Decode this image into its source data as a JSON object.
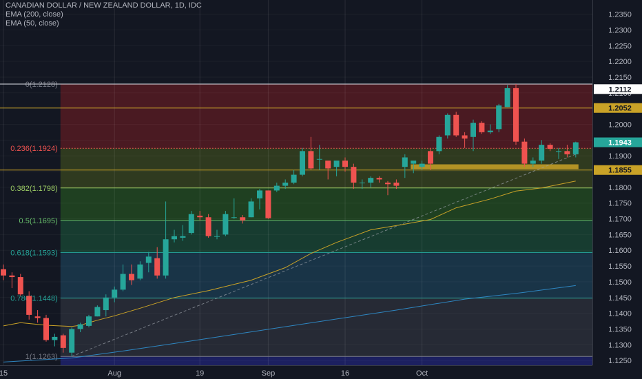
{
  "header": {
    "title": "CANADIAN DOLLAR / NEW ZEALAND DOLLAR, 1D, IDC",
    "indicators": [
      "EMA (200, close)",
      "EMA (50, close)"
    ]
  },
  "colors": {
    "background": "#131722",
    "up": "#26a69a",
    "down": "#ef5350",
    "ema50": "#c9a227",
    "ema200": "#2e86c1",
    "trendline": "#9aa0a8",
    "text": "#b2b5be"
  },
  "chart_data": {
    "type": "candlestick",
    "symbol": "CADNZD",
    "timeframe": "1D",
    "ylim": [
      1.1235,
      1.2395
    ],
    "x_tick_labels": [
      {
        "label": "15",
        "index": 0
      },
      {
        "label": "Aug",
        "index": 13
      },
      {
        "label": "19",
        "index": 23
      },
      {
        "label": "Sep",
        "index": 31
      },
      {
        "label": "16",
        "index": 40
      },
      {
        "label": "Oct",
        "index": 49
      }
    ],
    "y_ticks": [
      1.125,
      1.13,
      1.135,
      1.14,
      1.145,
      1.15,
      1.155,
      1.16,
      1.165,
      1.17,
      1.175,
      1.18,
      1.185,
      1.19,
      1.195,
      1.2,
      1.205,
      1.21,
      1.215,
      1.22,
      1.225,
      1.23,
      1.235
    ],
    "y_tick_labels": [
      "1.1250",
      "1.1300",
      "1.1350",
      "1.1400",
      "1.1450",
      "1.1500",
      "1.1550",
      "1.1600",
      "1.1650",
      "1.1700",
      "1.1750",
      "1.1800",
      "1.1850",
      "1.1900",
      "1.1950",
      "1.2000",
      "1.2050",
      "1.2100",
      "1.2150",
      "1.2200",
      "1.2250",
      "1.2300",
      "1.2350"
    ],
    "price_badges": [
      {
        "label": "1.2112",
        "value": 1.2112,
        "bg": "#ffffff",
        "fg": "#131722"
      },
      {
        "label": "1.2052",
        "value": 1.2052,
        "bg": "#c9a227",
        "fg": "#131722"
      },
      {
        "label": "1.1943",
        "value": 1.1943,
        "bg": "#26a69a",
        "fg": "#ffffff"
      },
      {
        "label": "1.1855",
        "value": 1.1855,
        "bg": "#c9a227",
        "fg": "#131722"
      }
    ],
    "horizontal_lines": [
      {
        "value": 1.2128,
        "color": "#e0e3eb"
      },
      {
        "value": 1.2052,
        "color": "#c9a227"
      },
      {
        "value": 1.1855,
        "color": "#c9a227"
      }
    ],
    "fibonacci": {
      "start_index": 7,
      "levels": [
        {
          "label": "0(1.2128)",
          "value": 1.2128,
          "color": "#787b86",
          "fill": "#4a1a22"
        },
        {
          "label": "0.236(1.1924)",
          "value": 1.1924,
          "color": "#ef5350",
          "fill": "#2f3a1f"
        },
        {
          "label": "0.382(1.1798)",
          "value": 1.1798,
          "color": "#9ccc65",
          "fill": "#1f4021"
        },
        {
          "label": "0.5(1.1695)",
          "value": 1.1695,
          "color": "#66bb6a",
          "fill": "#173c30"
        },
        {
          "label": "0.618(1.1593)",
          "value": 1.1593,
          "color": "#26a69a",
          "fill": "#193447"
        },
        {
          "label": "0.786(1.1448)",
          "value": 1.1448,
          "color": "#26a69a",
          "fill": "#262a35"
        },
        {
          "label": "1(1.1263)",
          "value": 1.1263,
          "color": "#787b86",
          "fill": "#1c2060"
        }
      ]
    },
    "candles": [
      {
        "o": 1.154,
        "h": 1.1555,
        "l": 1.1505,
        "c": 1.152
      },
      {
        "o": 1.152,
        "h": 1.153,
        "l": 1.148,
        "c": 1.1515
      },
      {
        "o": 1.1515,
        "h": 1.1525,
        "l": 1.1455,
        "c": 1.146
      },
      {
        "o": 1.1455,
        "h": 1.147,
        "l": 1.138,
        "c": 1.1395
      },
      {
        "o": 1.139,
        "h": 1.141,
        "l": 1.137,
        "c": 1.1385
      },
      {
        "o": 1.1385,
        "h": 1.1395,
        "l": 1.131,
        "c": 1.1315
      },
      {
        "o": 1.1315,
        "h": 1.1335,
        "l": 1.1295,
        "c": 1.1325
      },
      {
        "o": 1.133,
        "h": 1.1335,
        "l": 1.1275,
        "c": 1.129
      },
      {
        "o": 1.1275,
        "h": 1.1355,
        "l": 1.1263,
        "c": 1.135
      },
      {
        "o": 1.135,
        "h": 1.137,
        "l": 1.134,
        "c": 1.1365
      },
      {
        "o": 1.136,
        "h": 1.1395,
        "l": 1.1355,
        "c": 1.139
      },
      {
        "o": 1.139,
        "h": 1.1425,
        "l": 1.139,
        "c": 1.142
      },
      {
        "o": 1.141,
        "h": 1.146,
        "l": 1.139,
        "c": 1.145
      },
      {
        "o": 1.145,
        "h": 1.1485,
        "l": 1.1435,
        "c": 1.1475
      },
      {
        "o": 1.1475,
        "h": 1.1555,
        "l": 1.147,
        "c": 1.1525
      },
      {
        "o": 1.1525,
        "h": 1.1555,
        "l": 1.149,
        "c": 1.1505
      },
      {
        "o": 1.151,
        "h": 1.1565,
        "l": 1.1505,
        "c": 1.1555
      },
      {
        "o": 1.156,
        "h": 1.1595,
        "l": 1.153,
        "c": 1.158
      },
      {
        "o": 1.1575,
        "h": 1.161,
        "l": 1.151,
        "c": 1.152
      },
      {
        "o": 1.152,
        "h": 1.1755,
        "l": 1.151,
        "c": 1.1635
      },
      {
        "o": 1.1635,
        "h": 1.1665,
        "l": 1.1625,
        "c": 1.1645
      },
      {
        "o": 1.164,
        "h": 1.168,
        "l": 1.163,
        "c": 1.1645
      },
      {
        "o": 1.1655,
        "h": 1.1725,
        "l": 1.165,
        "c": 1.1715
      },
      {
        "o": 1.171,
        "h": 1.1725,
        "l": 1.1695,
        "c": 1.1705
      },
      {
        "o": 1.1705,
        "h": 1.1715,
        "l": 1.164,
        "c": 1.1645
      },
      {
        "o": 1.1645,
        "h": 1.1665,
        "l": 1.1635,
        "c": 1.1645
      },
      {
        "o": 1.165,
        "h": 1.1725,
        "l": 1.1645,
        "c": 1.1715
      },
      {
        "o": 1.1705,
        "h": 1.1765,
        "l": 1.17,
        "c": 1.1705
      },
      {
        "o": 1.1705,
        "h": 1.1712,
        "l": 1.1685,
        "c": 1.1695
      },
      {
        "o": 1.1705,
        "h": 1.1765,
        "l": 1.1705,
        "c": 1.1755
      },
      {
        "o": 1.1765,
        "h": 1.1795,
        "l": 1.173,
        "c": 1.179
      },
      {
        "o": 1.179,
        "h": 1.179,
        "l": 1.17,
        "c": 1.1702
      },
      {
        "o": 1.179,
        "h": 1.1815,
        "l": 1.1785,
        "c": 1.1805
      },
      {
        "o": 1.1805,
        "h": 1.1825,
        "l": 1.1795,
        "c": 1.1815
      },
      {
        "o": 1.1815,
        "h": 1.1855,
        "l": 1.181,
        "c": 1.184
      },
      {
        "o": 1.184,
        "h": 1.1925,
        "l": 1.1835,
        "c": 1.1915
      },
      {
        "o": 1.1915,
        "h": 1.196,
        "l": 1.1855,
        "c": 1.186
      },
      {
        "o": 1.189,
        "h": 1.1935,
        "l": 1.1855,
        "c": 1.189
      },
      {
        "o": 1.1885,
        "h": 1.1885,
        "l": 1.1825,
        "c": 1.186
      },
      {
        "o": 1.1865,
        "h": 1.1885,
        "l": 1.1835,
        "c": 1.1885
      },
      {
        "o": 1.1885,
        "h": 1.1895,
        "l": 1.185,
        "c": 1.1865
      },
      {
        "o": 1.1865,
        "h": 1.1875,
        "l": 1.1795,
        "c": 1.1815
      },
      {
        "o": 1.1815,
        "h": 1.1825,
        "l": 1.1795,
        "c": 1.1815
      },
      {
        "o": 1.1815,
        "h": 1.1835,
        "l": 1.18,
        "c": 1.183
      },
      {
        "o": 1.183,
        "h": 1.1835,
        "l": 1.1815,
        "c": 1.1825
      },
      {
        "o": 1.1815,
        "h": 1.182,
        "l": 1.1775,
        "c": 1.181
      },
      {
        "o": 1.1815,
        "h": 1.1825,
        "l": 1.1795,
        "c": 1.1805
      },
      {
        "o": 1.1865,
        "h": 1.1905,
        "l": 1.183,
        "c": 1.1895
      },
      {
        "o": 1.1875,
        "h": 1.1885,
        "l": 1.1845,
        "c": 1.1885
      },
      {
        "o": 1.1865,
        "h": 1.1885,
        "l": 1.1855,
        "c": 1.1875
      },
      {
        "o": 1.1915,
        "h": 1.1925,
        "l": 1.1855,
        "c": 1.1875
      },
      {
        "o": 1.1915,
        "h": 1.1965,
        "l": 1.1905,
        "c": 1.196
      },
      {
        "o": 1.1965,
        "h": 1.2035,
        "l": 1.1955,
        "c": 1.203
      },
      {
        "o": 1.203,
        "h": 1.204,
        "l": 1.196,
        "c": 1.1965
      },
      {
        "o": 1.1965,
        "h": 1.1975,
        "l": 1.1925,
        "c": 1.1955
      },
      {
        "o": 1.196,
        "h": 1.2015,
        "l": 1.1915,
        "c": 1.2005
      },
      {
        "o": 1.2005,
        "h": 1.201,
        "l": 1.197,
        "c": 1.1975
      },
      {
        "o": 1.1975,
        "h": 1.2,
        "l": 1.197,
        "c": 1.198
      },
      {
        "o": 1.1985,
        "h": 1.2065,
        "l": 1.1975,
        "c": 1.206
      },
      {
        "o": 1.2055,
        "h": 1.2125,
        "l": 1.2055,
        "c": 1.2115
      },
      {
        "o": 1.2115,
        "h": 1.2128,
        "l": 1.1935,
        "c": 1.1945
      },
      {
        "o": 1.1945,
        "h": 1.1955,
        "l": 1.1865,
        "c": 1.1875
      },
      {
        "o": 1.1875,
        "h": 1.1895,
        "l": 1.1865,
        "c": 1.1885
      },
      {
        "o": 1.1885,
        "h": 1.195,
        "l": 1.1875,
        "c": 1.1935
      },
      {
        "o": 1.1935,
        "h": 1.194,
        "l": 1.1915,
        "c": 1.1922
      },
      {
        "o": 1.1915,
        "h": 1.1925,
        "l": 1.189,
        "c": 1.1915
      },
      {
        "o": 1.1915,
        "h": 1.1935,
        "l": 1.1895,
        "c": 1.1905
      },
      {
        "o": 1.1905,
        "h": 1.1945,
        "l": 1.1895,
        "c": 1.1943
      }
    ],
    "ema50": [
      [
        0,
        1.136
      ],
      [
        2,
        1.137
      ],
      [
        5,
        1.1362
      ],
      [
        8,
        1.1358
      ],
      [
        9,
        1.1362
      ],
      [
        11,
        1.1378
      ],
      [
        13,
        1.1392
      ],
      [
        16,
        1.1416
      ],
      [
        20,
        1.145
      ],
      [
        24,
        1.1472
      ],
      [
        29,
        1.1505
      ],
      [
        33,
        1.1545
      ],
      [
        36,
        1.159
      ],
      [
        39,
        1.1625
      ],
      [
        43,
        1.1665
      ],
      [
        47,
        1.1683
      ],
      [
        50,
        1.1698
      ],
      [
        53,
        1.1735
      ],
      [
        57,
        1.1763
      ],
      [
        60,
        1.1788
      ],
      [
        63,
        1.1798
      ],
      [
        67,
        1.182
      ]
    ],
    "ema200": [
      [
        0,
        1.1245
      ],
      [
        8,
        1.1258
      ],
      [
        14,
        1.128
      ],
      [
        22,
        1.1312
      ],
      [
        30,
        1.1345
      ],
      [
        38,
        1.1378
      ],
      [
        46,
        1.141
      ],
      [
        54,
        1.1445
      ],
      [
        60,
        1.1463
      ],
      [
        67,
        1.1488
      ]
    ],
    "trendline": {
      "from": [
        8,
        1.1263
      ],
      "to": [
        67,
        1.1905
      ]
    },
    "highlight_zones": [
      {
        "from_index": 48,
        "to_index": 67,
        "low": 1.1858,
        "high": 1.1873,
        "color": "#c9a227"
      }
    ]
  }
}
